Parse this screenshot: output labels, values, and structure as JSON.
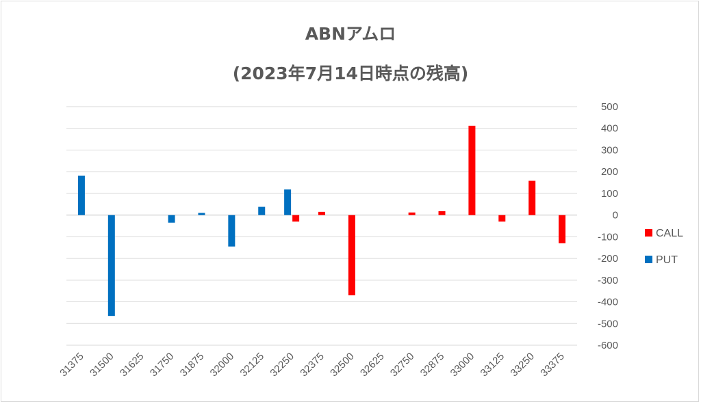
{
  "chart_data": {
    "type": "bar",
    "title": "ABNアムロ",
    "subtitle": "(2023年7月14日時点の残高)",
    "categories": [
      "31375",
      "31500",
      "31625",
      "31750",
      "31875",
      "32000",
      "32125",
      "32250",
      "32375",
      "32500",
      "32625",
      "32750",
      "32875",
      "33000",
      "33125",
      "33250",
      "33375"
    ],
    "series": [
      {
        "name": "CALL",
        "color": "#ff0000",
        "values": [
          null,
          null,
          null,
          null,
          null,
          null,
          null,
          -30,
          15,
          -370,
          null,
          12,
          18,
          412,
          -30,
          158,
          -130
        ]
      },
      {
        "name": "PUT",
        "color": "#0070c0",
        "values": [
          182,
          -465,
          null,
          -35,
          10,
          -145,
          38,
          118,
          null,
          null,
          null,
          null,
          null,
          null,
          null,
          null,
          null
        ]
      }
    ],
    "ylim": [
      -600,
      500
    ],
    "yticks": [
      500,
      400,
      300,
      200,
      100,
      0,
      -100,
      -200,
      -300,
      -400,
      -500,
      -600
    ],
    "y_axis_side": "right",
    "grid": true,
    "legend_position": "right"
  }
}
